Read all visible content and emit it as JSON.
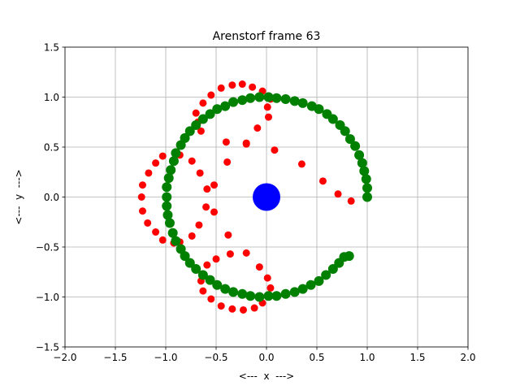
{
  "chart_data": {
    "type": "scatter",
    "title": "Arenstorf frame 63",
    "xlabel": "<---  x  --->",
    "ylabel": "<---  y  --->",
    "xlim": [
      -2.0,
      2.0
    ],
    "ylim": [
      -1.5,
      1.5
    ],
    "xticks": [
      -2.0,
      -1.5,
      -1.0,
      -0.5,
      0.0,
      0.5,
      1.0,
      1.5,
      2.0
    ],
    "yticks": [
      -1.5,
      -1.0,
      -0.5,
      0.0,
      0.5,
      1.0,
      1.5
    ],
    "xtick_labels": [
      "−2.0",
      "−1.5",
      "−1.0",
      "−0.5",
      "0.0",
      "0.5",
      "1.0",
      "1.5",
      "2.0"
    ],
    "ytick_labels": [
      "−1.5",
      "−1.0",
      "−0.5",
      "0.0",
      "0.5",
      "1.0",
      "1.5"
    ],
    "grid": true,
    "series": [
      {
        "color": "#ff0000",
        "marker": "small-circle",
        "points": [
          [
            1.0,
            0.0
          ],
          [
            0.84,
            -0.04
          ],
          [
            0.71,
            0.03
          ],
          [
            0.56,
            0.16
          ],
          [
            0.35,
            0.33
          ],
          [
            0.08,
            0.47
          ],
          [
            -0.2,
            0.53
          ],
          [
            -0.4,
            0.55
          ],
          [
            -0.65,
            0.66
          ],
          [
            -0.68,
            0.75
          ],
          [
            -0.7,
            0.84
          ],
          [
            -0.63,
            0.94
          ],
          [
            -0.55,
            1.02
          ],
          [
            -0.45,
            1.09
          ],
          [
            -0.34,
            1.12
          ],
          [
            -0.24,
            1.13
          ],
          [
            -0.14,
            1.1
          ],
          [
            -0.04,
            1.06
          ],
          [
            0.04,
            0.98
          ],
          [
            0.01,
            0.9
          ],
          [
            0.02,
            0.8
          ],
          [
            -0.09,
            0.69
          ],
          [
            -0.2,
            0.54
          ],
          [
            -0.39,
            0.35
          ],
          [
            -0.52,
            0.12
          ],
          [
            -0.59,
            0.08
          ],
          [
            -0.66,
            0.24
          ],
          [
            -0.74,
            0.36
          ],
          [
            -0.86,
            0.42
          ],
          [
            -0.91,
            0.44
          ],
          [
            -1.03,
            0.41
          ],
          [
            -1.1,
            0.34
          ],
          [
            -1.17,
            0.24
          ],
          [
            -1.23,
            0.12
          ],
          [
            -1.24,
            0.0
          ],
          [
            -1.23,
            -0.14
          ],
          [
            -1.18,
            -0.26
          ],
          [
            -1.1,
            -0.35
          ],
          [
            -1.03,
            -0.43
          ],
          [
            -0.92,
            -0.46
          ],
          [
            -0.86,
            -0.45
          ],
          [
            -0.74,
            -0.39
          ],
          [
            -0.67,
            -0.28
          ],
          [
            -0.6,
            -0.1
          ],
          [
            -0.52,
            -0.15
          ],
          [
            -0.38,
            -0.38
          ],
          [
            -0.5,
            -0.62
          ],
          [
            -0.59,
            -0.68
          ],
          [
            -0.64,
            -0.77
          ],
          [
            -0.65,
            -0.84
          ],
          [
            -0.63,
            -0.94
          ],
          [
            -0.55,
            -1.02
          ],
          [
            -0.45,
            -1.09
          ],
          [
            -0.34,
            -1.12
          ],
          [
            -0.23,
            -1.13
          ],
          [
            -0.12,
            -1.11
          ],
          [
            -0.04,
            -1.06
          ],
          [
            0.02,
            -0.99
          ],
          [
            0.04,
            -0.91
          ],
          [
            0.01,
            -0.81
          ],
          [
            -0.07,
            -0.7
          ],
          [
            -0.2,
            -0.56
          ],
          [
            -0.36,
            -0.57
          ]
        ]
      },
      {
        "color": "#008000",
        "marker": "large-circle",
        "points": [
          [
            1.0,
            0.0
          ],
          [
            1.0,
            0.09
          ],
          [
            0.99,
            0.18
          ],
          [
            0.97,
            0.26
          ],
          [
            0.95,
            0.34
          ],
          [
            0.92,
            0.42
          ],
          [
            0.88,
            0.51
          ],
          [
            0.83,
            0.58
          ],
          [
            0.78,
            0.66
          ],
          [
            0.73,
            0.72
          ],
          [
            0.66,
            0.78
          ],
          [
            0.6,
            0.83
          ],
          [
            0.52,
            0.88
          ],
          [
            0.45,
            0.91
          ],
          [
            0.36,
            0.94
          ],
          [
            0.28,
            0.96
          ],
          [
            0.19,
            0.98
          ],
          [
            0.1,
            0.99
          ],
          [
            0.02,
            1.0
          ],
          [
            -0.07,
            1.0
          ],
          [
            -0.16,
            0.99
          ],
          [
            -0.24,
            0.97
          ],
          [
            -0.33,
            0.95
          ],
          [
            -0.41,
            0.91
          ],
          [
            -0.49,
            0.88
          ],
          [
            -0.56,
            0.83
          ],
          [
            -0.63,
            0.78
          ],
          [
            -0.7,
            0.72
          ],
          [
            -0.76,
            0.66
          ],
          [
            -0.81,
            0.59
          ],
          [
            -0.85,
            0.52
          ],
          [
            -0.9,
            0.44
          ],
          [
            -0.92,
            0.36
          ],
          [
            -0.95,
            0.27
          ],
          [
            -0.97,
            0.19
          ],
          [
            -0.99,
            0.1
          ],
          [
            -0.99,
            0.0
          ],
          [
            -0.99,
            -0.09
          ],
          [
            -0.98,
            -0.18
          ],
          [
            -0.96,
            -0.26
          ],
          [
            -0.93,
            -0.36
          ],
          [
            -0.9,
            -0.44
          ],
          [
            -0.85,
            -0.52
          ],
          [
            -0.81,
            -0.59
          ],
          [
            -0.76,
            -0.66
          ],
          [
            -0.7,
            -0.72
          ],
          [
            -0.63,
            -0.78
          ],
          [
            -0.56,
            -0.83
          ],
          [
            -0.49,
            -0.88
          ],
          [
            -0.41,
            -0.92
          ],
          [
            -0.33,
            -0.95
          ],
          [
            -0.24,
            -0.97
          ],
          [
            -0.16,
            -0.99
          ],
          [
            -0.07,
            -1.0
          ],
          [
            0.02,
            -0.99
          ],
          [
            0.1,
            -0.99
          ],
          [
            0.19,
            -0.97
          ],
          [
            0.28,
            -0.95
          ],
          [
            0.36,
            -0.92
          ],
          [
            0.44,
            -0.88
          ],
          [
            0.52,
            -0.84
          ],
          [
            0.59,
            -0.78
          ],
          [
            0.66,
            -0.72
          ],
          [
            0.72,
            -0.66
          ],
          [
            0.77,
            -0.6
          ],
          [
            0.82,
            -0.59
          ]
        ]
      },
      {
        "color": "#0000ff",
        "marker": "huge-circle",
        "points": [
          [
            0.0,
            0.0
          ]
        ]
      }
    ]
  }
}
